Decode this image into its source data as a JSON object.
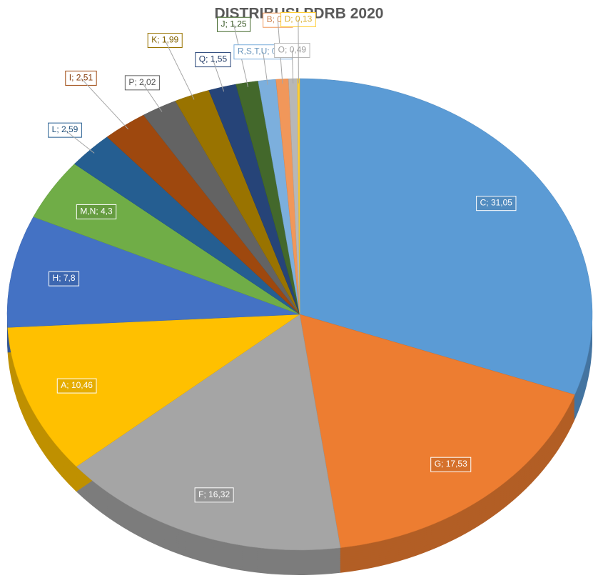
{
  "chart_data": {
    "type": "pie",
    "title": "DISTRIBUSI PDRB 2020",
    "categories": [
      "C",
      "G",
      "F",
      "A",
      "H",
      "M,N",
      "L",
      "I",
      "P",
      "K",
      "Q",
      "J",
      "R,S,T,U",
      "B",
      "O",
      "D"
    ],
    "values": [
      31.05,
      17.53,
      16.32,
      10.46,
      7.8,
      4.3,
      2.59,
      2.51,
      2.02,
      1.99,
      1.55,
      1.25,
      0.99,
      0.7,
      0.49,
      0.13
    ],
    "value_labels": [
      "31,05",
      "17,53",
      "16,32",
      "10,46",
      "7,8",
      "4,3",
      "2,59",
      "2,51",
      "2,02",
      "1,99",
      "1,55",
      "1,25",
      "0,99",
      "0,7",
      "0,49",
      "0,13"
    ],
    "label_separator": "; ",
    "colors": [
      "#5b9bd5",
      "#ed7d31",
      "#a5a5a5",
      "#ffc000",
      "#4472c4",
      "#70ad47",
      "#255e91",
      "#9e480e",
      "#636363",
      "#997300",
      "#264478",
      "#43682b",
      "#7cafdd",
      "#f1975a",
      "#b7b7b7",
      "#ffcd33"
    ]
  }
}
